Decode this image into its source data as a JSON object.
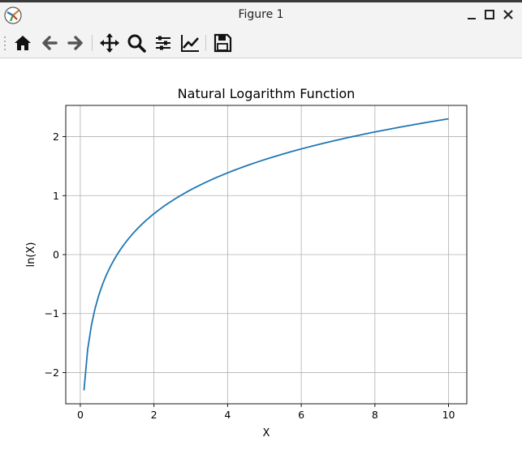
{
  "window": {
    "title": "Figure 1"
  },
  "toolbar": {
    "buttons": [
      {
        "name": "home",
        "icon": "home-icon"
      },
      {
        "name": "back",
        "icon": "arrow-left-icon"
      },
      {
        "name": "forward",
        "icon": "arrow-right-icon"
      },
      {
        "name": "pan",
        "icon": "move-icon"
      },
      {
        "name": "zoom",
        "icon": "magnifier-icon"
      },
      {
        "name": "configure-subplots",
        "icon": "sliders-icon"
      },
      {
        "name": "edit-axes",
        "icon": "line-chart-icon"
      },
      {
        "name": "save",
        "icon": "floppy-disk-icon"
      }
    ]
  },
  "colors": {
    "line": "#1f77b4",
    "grid": "#b0b0b0",
    "toolbar_bg": "#f3f3f3"
  },
  "chart_data": {
    "type": "line",
    "title": "Natural Logarithm Function",
    "xlabel": "X",
    "ylabel": "ln(X)",
    "xlim": [
      -0.395,
      10.495
    ],
    "ylim": [
      -2.53,
      2.53
    ],
    "xticks": [
      0,
      2,
      4,
      6,
      8,
      10
    ],
    "xtick_labels": [
      "0",
      "2",
      "4",
      "6",
      "8",
      "10"
    ],
    "yticks": [
      -2,
      -1,
      0,
      1,
      2
    ],
    "ytick_labels": [
      "−2",
      "−1",
      "0",
      "1",
      "2"
    ],
    "grid": true,
    "function": "ln(x)",
    "x_range": [
      0.1,
      10
    ]
  }
}
